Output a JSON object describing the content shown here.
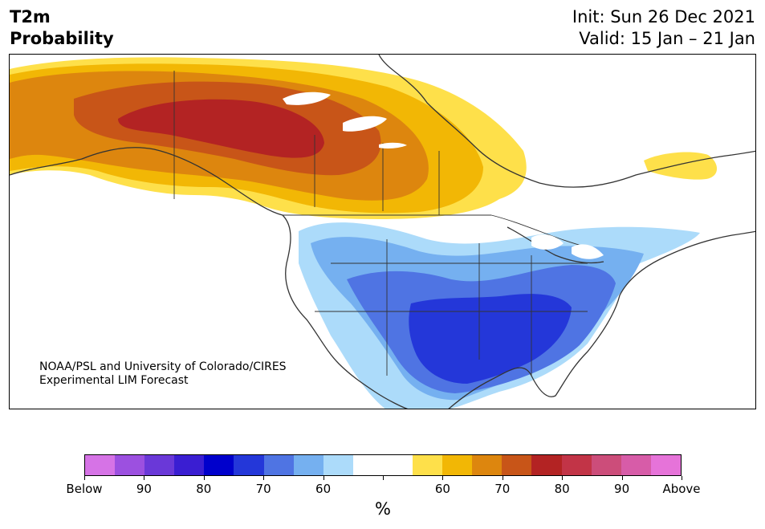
{
  "header": {
    "title_line1": "T2m",
    "title_line2": "Probability",
    "init_text": "Init: Sun 26 Dec 2021",
    "valid_text": "Valid: 15 Jan – 21 Jan"
  },
  "map": {
    "credit_line1": "NOAA/PSL and University of Colorado/CIRES",
    "credit_line2": "Experimental LIM Forecast"
  },
  "colorbar": {
    "colors": [
      "#d673e6",
      "#9c50e0",
      "#6a38d8",
      "#3a1ed2",
      "#0000cc",
      "#2437d9",
      "#4f74e3",
      "#75b0f0",
      "#acdbfa",
      "#ffffff",
      "#ffffff",
      "#fee04a",
      "#f2b705",
      "#dd860e",
      "#c85518",
      "#b32323",
      "#c23447",
      "#cc4d7a",
      "#d75ca8",
      "#e673d9"
    ],
    "tick_labels": [
      "Below",
      "90",
      "80",
      "70",
      "60",
      "",
      "60",
      "70",
      "80",
      "90",
      "Above"
    ],
    "unit": "%"
  }
}
